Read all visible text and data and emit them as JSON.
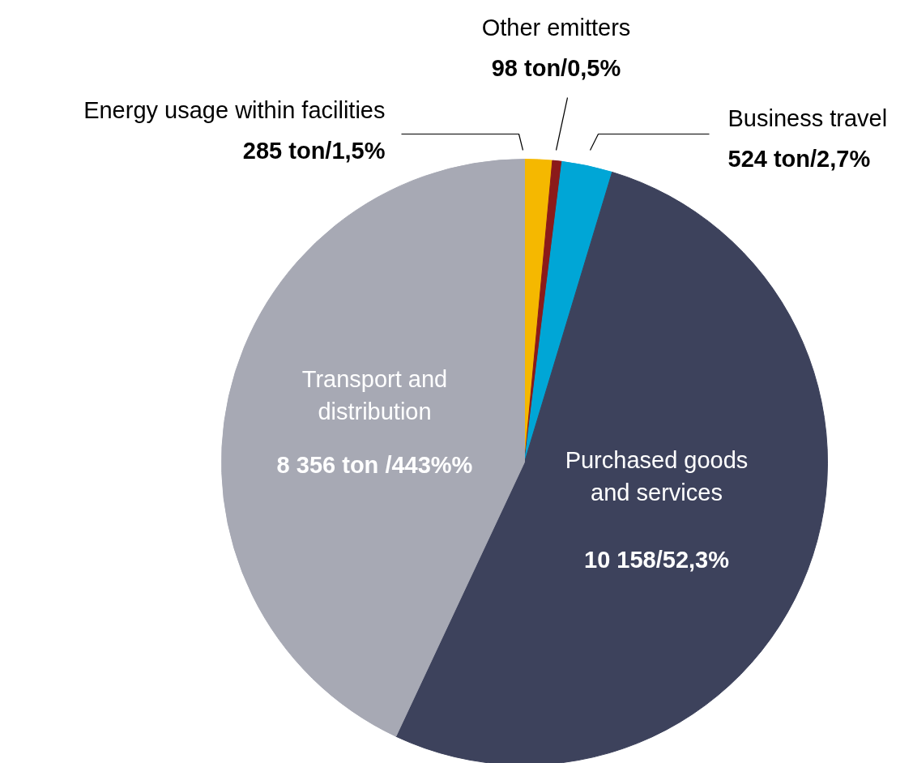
{
  "chart_data": {
    "type": "pie",
    "categories": [
      "Energy usage within facilities",
      "Other emitters",
      "Business travel",
      "Purchased goods\nand services",
      "Transport and\ndistribution"
    ],
    "values": [
      285,
      98,
      524,
      10158,
      8356
    ],
    "value_labels": [
      "285 ton/1,5%",
      "98 ton/0,5%",
      "524 ton/2,7%",
      "10 158/52,3%",
      "8 356 ton /443%%"
    ],
    "colors": [
      "#f5b800",
      "#8b1a1a",
      "#00a6d6",
      "#3d425c",
      "#a7a9b4"
    ]
  }
}
